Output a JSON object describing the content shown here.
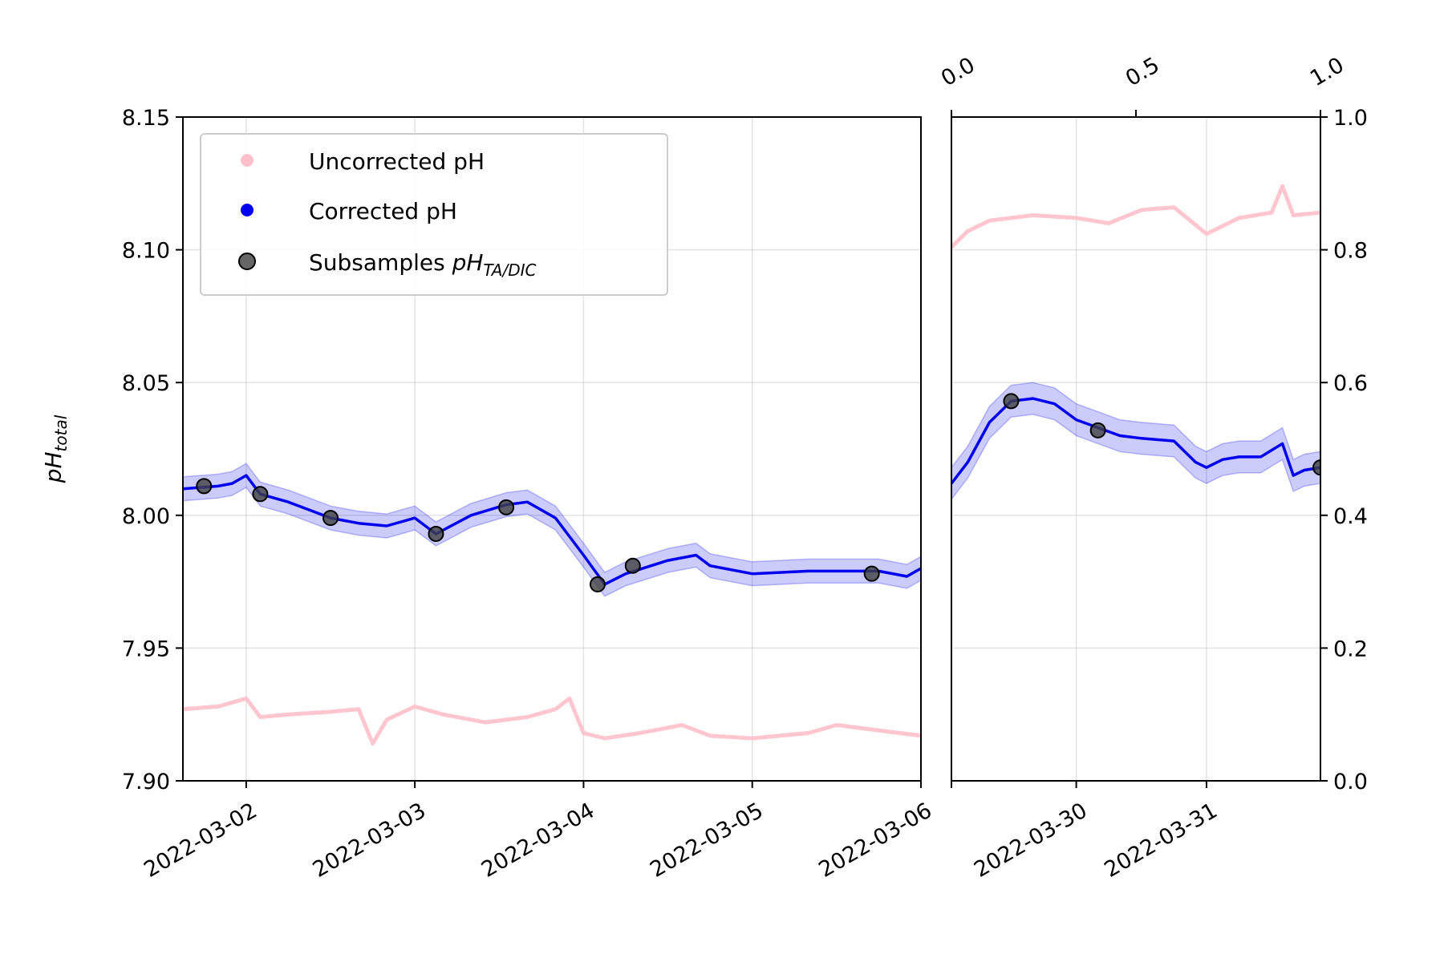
{
  "chart_data": [
    {
      "type": "line",
      "panel": "left",
      "ylabel": "pH",
      "ylabel_subscript": "total",
      "ylim": [
        7.9,
        8.15
      ],
      "yticks": [
        "7.90",
        "7.95",
        "8.00",
        "8.05",
        "8.10",
        "8.15"
      ],
      "xlim": [
        "2022-03-01T15:00",
        "2022-03-06T00:00"
      ],
      "xticks": [
        "2022-03-02",
        "2022-03-03",
        "2022-03-04",
        "2022-03-05",
        "2022-03-06"
      ],
      "grid": true,
      "legend": {
        "placement": "upper-left",
        "entries": [
          {
            "label": "Uncorrected pH",
            "color": "#ffc0cb",
            "marker": "dot"
          },
          {
            "label": "Corrected pH",
            "color": "#0000ee",
            "marker": "dot"
          },
          {
            "label": "Subsamples ",
            "math": "pH",
            "math_sub": "TA/DIC",
            "color": "#404040",
            "marker": "dot-outline"
          }
        ]
      },
      "series": [
        {
          "name": "Uncorrected pH",
          "color": "#ffc0cb",
          "x": [
            "2022-03-01T15:00",
            "2022-03-01T20:00",
            "2022-03-02T00:00",
            "2022-03-02T02:00",
            "2022-03-02T06:00",
            "2022-03-02T12:00",
            "2022-03-02T16:00",
            "2022-03-02T18:00",
            "2022-03-02T20:00",
            "2022-03-03T00:00",
            "2022-03-03T04:00",
            "2022-03-03T10:00",
            "2022-03-03T16:00",
            "2022-03-03T20:00",
            "2022-03-03T22:00",
            "2022-03-04T00:00",
            "2022-03-04T03:00",
            "2022-03-04T08:00",
            "2022-03-04T14:00",
            "2022-03-04T18:00",
            "2022-03-05T00:00",
            "2022-03-05T08:00",
            "2022-03-05T12:00",
            "2022-03-05T18:00",
            "2022-03-06T00:00"
          ],
          "y": [
            7.927,
            7.928,
            7.931,
            7.924,
            7.925,
            7.926,
            7.927,
            7.914,
            7.923,
            7.928,
            7.925,
            7.922,
            7.924,
            7.927,
            7.931,
            7.918,
            7.916,
            7.918,
            7.921,
            7.917,
            7.916,
            7.918,
            7.921,
            7.919,
            7.917
          ]
        },
        {
          "name": "Corrected pH",
          "color": "#0000ee",
          "x": [
            "2022-03-01T15:00",
            "2022-03-01T20:00",
            "2022-03-01T22:00",
            "2022-03-02T00:00",
            "2022-03-02T02:00",
            "2022-03-02T06:00",
            "2022-03-02T12:00",
            "2022-03-02T16:00",
            "2022-03-02T20:00",
            "2022-03-03T00:00",
            "2022-03-03T03:00",
            "2022-03-03T08:00",
            "2022-03-03T13:00",
            "2022-03-03T16:00",
            "2022-03-03T20:00",
            "2022-03-04T00:00",
            "2022-03-04T03:00",
            "2022-03-04T06:00",
            "2022-03-04T12:00",
            "2022-03-04T16:00",
            "2022-03-04T18:00",
            "2022-03-05T00:00",
            "2022-03-05T08:00",
            "2022-03-05T12:00",
            "2022-03-05T18:00",
            "2022-03-05T22:00",
            "2022-03-06T00:00"
          ],
          "y": [
            8.01,
            8.011,
            8.012,
            8.015,
            8.008,
            8.005,
            7.999,
            7.997,
            7.996,
            7.999,
            7.993,
            8.0,
            8.004,
            8.005,
            7.999,
            7.985,
            7.974,
            7.978,
            7.983,
            7.985,
            7.981,
            7.978,
            7.979,
            7.979,
            7.979,
            7.977,
            7.98
          ],
          "band_halfwidth": 0.0045
        },
        {
          "name": "Subsamples pH TA/DIC",
          "color": "#404040",
          "points": [
            {
              "x": "2022-03-01T18:00",
              "y": 8.011
            },
            {
              "x": "2022-03-02T02:00",
              "y": 8.008
            },
            {
              "x": "2022-03-02T12:00",
              "y": 7.999
            },
            {
              "x": "2022-03-03T03:00",
              "y": 7.993
            },
            {
              "x": "2022-03-03T13:00",
              "y": 8.003
            },
            {
              "x": "2022-03-04T02:00",
              "y": 7.974
            },
            {
              "x": "2022-03-04T07:00",
              "y": 7.981
            },
            {
              "x": "2022-03-05T17:00",
              "y": 7.978
            }
          ]
        }
      ]
    },
    {
      "type": "line",
      "panel": "right",
      "ylim": [
        7.9,
        8.15
      ],
      "xlim": [
        "2022-03-29T01:00",
        "2022-03-31T21:00"
      ],
      "xticks": [
        "2022-03-30",
        "2022-03-31"
      ],
      "grid": true,
      "series": [
        {
          "name": "Uncorrected pH",
          "color": "#ffc0cb",
          "x": [
            "2022-03-29T01:00",
            "2022-03-29T04:00",
            "2022-03-29T08:00",
            "2022-03-29T12:00",
            "2022-03-29T16:00",
            "2022-03-30T00:00",
            "2022-03-30T06:00",
            "2022-03-30T12:00",
            "2022-03-30T18:00",
            "2022-03-31T00:00",
            "2022-03-31T06:00",
            "2022-03-31T12:00",
            "2022-03-31T14:00",
            "2022-03-31T16:00",
            "2022-03-31T21:00"
          ],
          "y": [
            8.101,
            8.107,
            8.111,
            8.112,
            8.113,
            8.112,
            8.11,
            8.115,
            8.116,
            8.106,
            8.112,
            8.114,
            8.124,
            8.113,
            8.114
          ]
        },
        {
          "name": "Corrected pH",
          "color": "#0000ee",
          "x": [
            "2022-03-29T01:00",
            "2022-03-29T04:00",
            "2022-03-29T08:00",
            "2022-03-29T12:00",
            "2022-03-29T16:00",
            "2022-03-29T20:00",
            "2022-03-30T00:00",
            "2022-03-30T04:00",
            "2022-03-30T08:00",
            "2022-03-30T12:00",
            "2022-03-30T18:00",
            "2022-03-30T22:00",
            "2022-03-31T00:00",
            "2022-03-31T03:00",
            "2022-03-31T06:00",
            "2022-03-31T10:00",
            "2022-03-31T14:00",
            "2022-03-31T16:00",
            "2022-03-31T18:00",
            "2022-03-31T21:00"
          ],
          "y": [
            8.012,
            8.02,
            8.035,
            8.043,
            8.044,
            8.042,
            8.036,
            8.033,
            8.03,
            8.029,
            8.028,
            8.02,
            8.018,
            8.021,
            8.022,
            8.022,
            8.027,
            8.015,
            8.017,
            8.018
          ],
          "band_halfwidth": 0.006
        },
        {
          "name": "Subsamples pH TA/DIC",
          "color": "#404040",
          "points": [
            {
              "x": "2022-03-29T12:00",
              "y": 8.043
            },
            {
              "x": "2022-03-30T04:00",
              "y": 8.032
            },
            {
              "x": "2022-03-31T21:00",
              "y": 8.018
            }
          ]
        }
      ]
    },
    {
      "type": "line",
      "panel": "right-twin-axes",
      "x2lim": [
        0.0,
        1.0
      ],
      "x2ticks": [
        "0.0",
        "0.5",
        "1.0"
      ],
      "y2lim": [
        0.0,
        1.0
      ],
      "y2ticks": [
        "0.0",
        "0.2",
        "0.4",
        "0.6",
        "0.8",
        "1.0"
      ]
    }
  ]
}
